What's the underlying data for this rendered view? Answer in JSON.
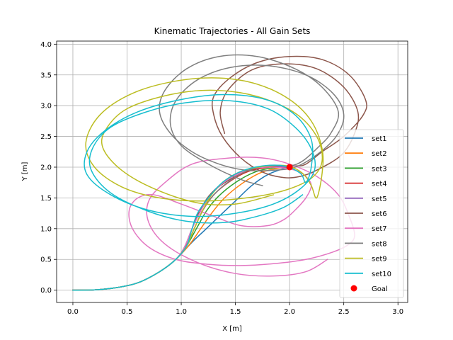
{
  "chart_data": {
    "type": "line",
    "title": "Kinematic Trajectories - All Gain Sets",
    "xlabel": "X [m]",
    "ylabel": "Y [m]",
    "xlim": [
      -0.15,
      3.09
    ],
    "ylim": [
      -0.2,
      4.05
    ],
    "xticks": [
      "0.0",
      "0.5",
      "1.0",
      "1.5",
      "2.0",
      "2.5",
      "3.0"
    ],
    "yticks": [
      "0.0",
      "0.5",
      "1.0",
      "1.5",
      "2.0",
      "2.5",
      "3.0",
      "3.5",
      "4.0"
    ],
    "grid": true,
    "legend_position": "lower-right",
    "series": [
      {
        "name": "set1",
        "color": "#1f77b4",
        "points": [
          [
            0,
            0
          ],
          [
            0.2,
            0.005
          ],
          [
            0.4,
            0.04
          ],
          [
            0.6,
            0.12
          ],
          [
            0.8,
            0.3
          ],
          [
            0.95,
            0.5
          ],
          [
            1.1,
            0.78
          ],
          [
            1.22,
            0.98
          ],
          [
            1.35,
            1.2
          ],
          [
            1.5,
            1.45
          ],
          [
            1.65,
            1.7
          ],
          [
            1.8,
            1.88
          ],
          [
            1.95,
            1.98
          ],
          [
            2.0,
            2.0
          ]
        ]
      },
      {
        "name": "set2",
        "color": "#ff7f0e",
        "points": [
          [
            0,
            0
          ],
          [
            0.2,
            0.005
          ],
          [
            0.4,
            0.04
          ],
          [
            0.6,
            0.12
          ],
          [
            0.8,
            0.3
          ],
          [
            0.95,
            0.5
          ],
          [
            1.08,
            0.75
          ],
          [
            1.18,
            1.0
          ],
          [
            1.28,
            1.25
          ],
          [
            1.4,
            1.5
          ],
          [
            1.55,
            1.72
          ],
          [
            1.72,
            1.9
          ],
          [
            1.88,
            1.98
          ],
          [
            2.0,
            2.0
          ]
        ]
      },
      {
        "name": "set3",
        "color": "#2ca02c",
        "points": [
          [
            0,
            0
          ],
          [
            0.2,
            0.005
          ],
          [
            0.4,
            0.04
          ],
          [
            0.6,
            0.12
          ],
          [
            0.8,
            0.3
          ],
          [
            0.95,
            0.5
          ],
          [
            1.05,
            0.72
          ],
          [
            1.14,
            1.0
          ],
          [
            1.23,
            1.28
          ],
          [
            1.34,
            1.52
          ],
          [
            1.5,
            1.75
          ],
          [
            1.68,
            1.92
          ],
          [
            1.85,
            1.99
          ],
          [
            2.0,
            2.0
          ]
        ]
      },
      {
        "name": "set4",
        "color": "#d62728",
        "points": [
          [
            0,
            0
          ],
          [
            0.2,
            0.005
          ],
          [
            0.4,
            0.04
          ],
          [
            0.6,
            0.12
          ],
          [
            0.8,
            0.3
          ],
          [
            0.95,
            0.5
          ],
          [
            1.04,
            0.7
          ],
          [
            1.12,
            1.0
          ],
          [
            1.2,
            1.3
          ],
          [
            1.3,
            1.55
          ],
          [
            1.45,
            1.77
          ],
          [
            1.62,
            1.93
          ],
          [
            1.82,
            2.0
          ],
          [
            2.0,
            2.0
          ]
        ]
      },
      {
        "name": "set5",
        "color": "#9467bd",
        "points": [
          [
            0,
            0
          ],
          [
            0.2,
            0.005
          ],
          [
            0.4,
            0.04
          ],
          [
            0.6,
            0.12
          ],
          [
            0.8,
            0.3
          ],
          [
            0.95,
            0.5
          ],
          [
            1.03,
            0.7
          ],
          [
            1.1,
            1.0
          ],
          [
            1.18,
            1.32
          ],
          [
            1.28,
            1.58
          ],
          [
            1.42,
            1.79
          ],
          [
            1.6,
            1.95
          ],
          [
            1.8,
            2.01
          ],
          [
            2.0,
            2.0
          ]
        ]
      },
      {
        "name": "set6",
        "color": "#8c564b",
        "points": [
          [
            0,
            0
          ],
          [
            0.2,
            0.005
          ],
          [
            0.4,
            0.04
          ],
          [
            0.6,
            0.12
          ],
          [
            0.8,
            0.3
          ],
          [
            0.95,
            0.5
          ],
          [
            1.03,
            0.7
          ],
          [
            1.1,
            1.0
          ],
          [
            1.18,
            1.32
          ],
          [
            1.28,
            1.58
          ],
          [
            1.45,
            1.8
          ],
          [
            1.65,
            1.96
          ],
          [
            1.85,
            2.02
          ],
          [
            2.05,
            2.02
          ],
          [
            2.15,
            2.05
          ],
          [
            2.3,
            2.25
          ],
          [
            2.5,
            2.5
          ],
          [
            2.68,
            2.85
          ],
          [
            2.7,
            3.1
          ],
          [
            2.55,
            3.5
          ],
          [
            2.3,
            3.75
          ],
          [
            2.0,
            3.8
          ],
          [
            1.7,
            3.7
          ],
          [
            1.45,
            3.45
          ],
          [
            1.3,
            3.15
          ],
          [
            1.3,
            2.85
          ],
          [
            1.38,
            2.5
          ],
          [
            1.55,
            2.15
          ],
          [
            1.75,
            1.92
          ],
          [
            1.95,
            1.83
          ],
          [
            2.1,
            1.85
          ],
          [
            2.25,
            1.95
          ],
          [
            2.48,
            2.2
          ],
          [
            2.6,
            2.55
          ],
          [
            2.63,
            2.9
          ],
          [
            2.5,
            3.3
          ],
          [
            2.25,
            3.6
          ],
          [
            1.95,
            3.68
          ],
          [
            1.65,
            3.58
          ],
          [
            1.43,
            3.25
          ],
          [
            1.36,
            2.9
          ],
          [
            1.4,
            2.55
          ]
        ]
      },
      {
        "name": "set7",
        "color": "#e377c2",
        "points": [
          [
            0,
            0
          ],
          [
            0.2,
            0.005
          ],
          [
            0.4,
            0.04
          ],
          [
            0.6,
            0.12
          ],
          [
            0.8,
            0.3
          ],
          [
            0.95,
            0.5
          ],
          [
            1.03,
            0.7
          ],
          [
            1.1,
            1.0
          ],
          [
            1.2,
            1.35
          ],
          [
            1.3,
            1.6
          ],
          [
            1.45,
            1.82
          ],
          [
            1.65,
            1.97
          ],
          [
            1.85,
            2.0
          ],
          [
            2.05,
            1.95
          ],
          [
            2.15,
            1.85
          ],
          [
            2.2,
            1.7
          ],
          [
            2.15,
            1.5
          ],
          [
            2.05,
            1.3
          ],
          [
            1.95,
            1.15
          ],
          [
            1.8,
            1.05
          ],
          [
            1.55,
            1.05
          ],
          [
            1.3,
            1.2
          ],
          [
            1.0,
            1.4
          ],
          [
            0.75,
            1.55
          ],
          [
            0.6,
            1.5
          ],
          [
            0.52,
            1.3
          ],
          [
            0.55,
            1.0
          ],
          [
            0.7,
            0.7
          ],
          [
            0.95,
            0.5
          ],
          [
            1.25,
            0.42
          ],
          [
            1.55,
            0.4
          ],
          [
            1.85,
            0.43
          ],
          [
            2.15,
            0.5
          ],
          [
            2.4,
            0.62
          ],
          [
            2.55,
            0.75
          ],
          [
            2.6,
            0.9
          ],
          [
            2.55,
            1.2
          ],
          [
            2.45,
            1.55
          ],
          [
            2.25,
            1.85
          ],
          [
            2.0,
            2.05
          ],
          [
            1.75,
            2.15
          ],
          [
            1.45,
            2.15
          ],
          [
            1.1,
            2.05
          ],
          [
            0.85,
            1.75
          ],
          [
            0.7,
            1.45
          ],
          [
            0.7,
            1.1
          ],
          [
            0.85,
            0.75
          ],
          [
            1.15,
            0.45
          ],
          [
            1.5,
            0.27
          ],
          [
            1.85,
            0.23
          ],
          [
            2.15,
            0.3
          ],
          [
            2.35,
            0.5
          ]
        ]
      },
      {
        "name": "set8",
        "color": "#7f7f7f",
        "points": [
          [
            0,
            0
          ],
          [
            0.2,
            0.005
          ],
          [
            0.4,
            0.04
          ],
          [
            0.6,
            0.12
          ],
          [
            0.8,
            0.3
          ],
          [
            0.95,
            0.5
          ],
          [
            1.05,
            0.72
          ],
          [
            1.12,
            1.0
          ],
          [
            1.2,
            1.3
          ],
          [
            1.3,
            1.55
          ],
          [
            1.45,
            1.78
          ],
          [
            1.62,
            1.95
          ],
          [
            1.82,
            2.03
          ],
          [
            2.0,
            2.02
          ],
          [
            2.12,
            2.1
          ],
          [
            2.25,
            2.3
          ],
          [
            2.38,
            2.55
          ],
          [
            2.45,
            2.9
          ],
          [
            2.3,
            3.3
          ],
          [
            2.05,
            3.6
          ],
          [
            1.7,
            3.8
          ],
          [
            1.35,
            3.8
          ],
          [
            1.05,
            3.6
          ],
          [
            0.85,
            3.25
          ],
          [
            0.8,
            2.9
          ],
          [
            0.9,
            2.55
          ],
          [
            1.1,
            2.25
          ],
          [
            1.35,
            2.05
          ],
          [
            1.6,
            1.95
          ],
          [
            1.85,
            1.95
          ],
          [
            2.05,
            2.0
          ],
          [
            2.25,
            2.2
          ],
          [
            2.43,
            2.5
          ],
          [
            2.5,
            2.85
          ],
          [
            2.4,
            3.2
          ],
          [
            2.15,
            3.5
          ],
          [
            1.8,
            3.65
          ],
          [
            1.45,
            3.62
          ],
          [
            1.15,
            3.42
          ],
          [
            0.95,
            3.08
          ],
          [
            0.9,
            2.7
          ],
          [
            1.0,
            2.35
          ],
          [
            1.25,
            2.05
          ],
          [
            1.55,
            1.8
          ],
          [
            1.75,
            1.7
          ]
        ]
      },
      {
        "name": "set9",
        "color": "#bcbd22",
        "points": [
          [
            0,
            0
          ],
          [
            0.2,
            0.005
          ],
          [
            0.4,
            0.04
          ],
          [
            0.6,
            0.12
          ],
          [
            0.8,
            0.3
          ],
          [
            0.95,
            0.5
          ],
          [
            1.05,
            0.72
          ],
          [
            1.12,
            1.0
          ],
          [
            1.2,
            1.3
          ],
          [
            1.28,
            1.55
          ],
          [
            1.4,
            1.78
          ],
          [
            1.58,
            1.95
          ],
          [
            1.8,
            2.02
          ],
          [
            1.98,
            2.02
          ],
          [
            2.12,
            1.9
          ],
          [
            2.2,
            1.7
          ],
          [
            2.25,
            1.5
          ],
          [
            2.3,
            1.9
          ],
          [
            2.3,
            2.3
          ],
          [
            2.2,
            2.75
          ],
          [
            2.0,
            3.1
          ],
          [
            1.7,
            3.35
          ],
          [
            1.35,
            3.45
          ],
          [
            0.95,
            3.4
          ],
          [
            0.55,
            3.2
          ],
          [
            0.25,
            2.85
          ],
          [
            0.12,
            2.4
          ],
          [
            0.2,
            2.0
          ],
          [
            0.45,
            1.68
          ],
          [
            0.8,
            1.5
          ],
          [
            1.2,
            1.45
          ],
          [
            1.6,
            1.5
          ],
          [
            1.95,
            1.62
          ],
          [
            2.2,
            1.82
          ],
          [
            2.3,
            2.1
          ],
          [
            2.25,
            2.5
          ],
          [
            2.05,
            2.88
          ],
          [
            1.7,
            3.15
          ],
          [
            1.3,
            3.25
          ],
          [
            0.9,
            3.18
          ],
          [
            0.5,
            2.95
          ],
          [
            0.3,
            2.6
          ],
          [
            0.28,
            2.3
          ],
          [
            0.45,
            1.95
          ],
          [
            0.75,
            1.65
          ],
          [
            1.15,
            1.42
          ],
          [
            1.5,
            1.4
          ],
          [
            1.85,
            1.55
          ]
        ]
      },
      {
        "name": "set10",
        "color": "#17becf",
        "points": [
          [
            0,
            0
          ],
          [
            0.2,
            0.005
          ],
          [
            0.4,
            0.04
          ],
          [
            0.6,
            0.12
          ],
          [
            0.8,
            0.3
          ],
          [
            0.95,
            0.5
          ],
          [
            1.05,
            0.72
          ],
          [
            1.1,
            1.0
          ],
          [
            1.15,
            1.25
          ],
          [
            1.25,
            1.5
          ],
          [
            1.38,
            1.75
          ],
          [
            1.55,
            1.93
          ],
          [
            1.75,
            2.02
          ],
          [
            1.95,
            2.02
          ],
          [
            2.1,
            1.9
          ],
          [
            2.15,
            1.75
          ],
          [
            2.2,
            2.0
          ],
          [
            2.2,
            2.45
          ],
          [
            2.05,
            2.85
          ],
          [
            1.78,
            3.1
          ],
          [
            1.4,
            3.18
          ],
          [
            1.0,
            3.1
          ],
          [
            0.6,
            2.9
          ],
          [
            0.3,
            2.6
          ],
          [
            0.13,
            2.25
          ],
          [
            0.13,
            1.88
          ],
          [
            0.35,
            1.55
          ],
          [
            0.7,
            1.3
          ],
          [
            1.1,
            1.2
          ],
          [
            1.5,
            1.25
          ],
          [
            1.85,
            1.4
          ],
          [
            2.1,
            1.65
          ],
          [
            2.23,
            1.95
          ],
          [
            2.2,
            2.3
          ],
          [
            2.05,
            2.65
          ],
          [
            1.8,
            2.95
          ],
          [
            1.45,
            3.08
          ],
          [
            1.05,
            3.05
          ],
          [
            0.68,
            2.9
          ],
          [
            0.35,
            2.65
          ],
          [
            0.18,
            2.3
          ],
          [
            0.17,
            1.95
          ],
          [
            0.35,
            1.58
          ],
          [
            0.7,
            1.28
          ],
          [
            1.05,
            1.12
          ],
          [
            1.4,
            1.1
          ],
          [
            1.7,
            1.2
          ],
          [
            1.95,
            1.35
          ],
          [
            2.12,
            1.55
          ]
        ]
      }
    ],
    "goal": {
      "name": "Goal",
      "x": 2.0,
      "y": 2.0,
      "color": "#ff0000"
    }
  }
}
